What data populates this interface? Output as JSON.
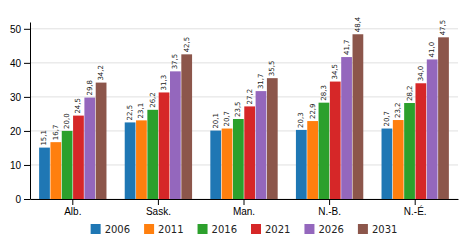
{
  "chart_data": {
    "type": "bar",
    "categories": [
      "Alb.",
      "Sask.",
      "Man.",
      "N.-B.",
      "N.-É."
    ],
    "series": [
      {
        "name": "2006",
        "values": [
          15.1,
          22.5,
          20.1,
          20.3,
          20.7
        ],
        "value_labels": [
          "15,1",
          "22,5",
          "20,1",
          "20,3",
          "20,7"
        ]
      },
      {
        "name": "2011",
        "values": [
          16.7,
          23.1,
          20.7,
          22.9,
          23.2
        ],
        "value_labels": [
          "16,7",
          "23,1",
          "20,7",
          "22,9",
          "23,2"
        ]
      },
      {
        "name": "2016",
        "values": [
          20.0,
          26.2,
          23.5,
          28.3,
          28.2
        ],
        "value_labels": [
          "20,0",
          "26,2",
          "23,5",
          "28,3",
          "28,2"
        ]
      },
      {
        "name": "2021",
        "values": [
          24.5,
          31.3,
          27.2,
          34.5,
          34.0
        ],
        "value_labels": [
          "24,5",
          "31,3",
          "27,2",
          "34,5",
          "34,0"
        ]
      },
      {
        "name": "2026",
        "values": [
          29.8,
          37.5,
          31.7,
          41.7,
          41.0
        ],
        "value_labels": [
          "29,8",
          "37,5",
          "31,7",
          "41,7",
          "41,0"
        ]
      },
      {
        "name": "2031",
        "values": [
          34.2,
          42.5,
          35.5,
          48.4,
          47.5
        ],
        "value_labels": [
          "34,2",
          "42,5",
          "35,5",
          "48,4",
          "47,5"
        ]
      }
    ],
    "ylim": [
      0,
      52
    ],
    "yticks": [
      0,
      10,
      20,
      30,
      40,
      50
    ],
    "grid": true,
    "data_labels": true,
    "legend": "bottom"
  }
}
